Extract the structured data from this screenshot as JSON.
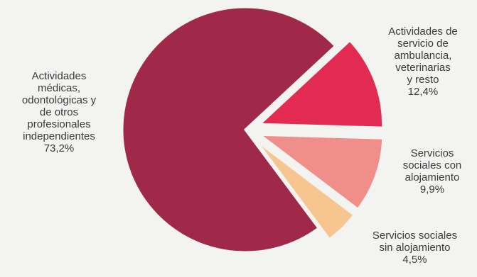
{
  "chart_data": {
    "type": "pie",
    "slices": [
      {
        "label_lines": [
          "Actividades",
          "médicas,",
          "odontológicas y",
          "de otros",
          "profesionales",
          "independientes"
        ],
        "value_label": "73,2%",
        "value": 73.2,
        "color": "#a02848",
        "exploded": false
      },
      {
        "label_lines": [
          "Actividades de",
          "servicio de",
          "ambulancia,",
          "veterinarias",
          "y resto"
        ],
        "value_label": "12,4%",
        "value": 12.4,
        "color": "#e32b52",
        "exploded": true
      },
      {
        "label_lines": [
          "Servicios",
          "sociales con",
          "alojamiento"
        ],
        "value_label": "9,9%",
        "value": 9.9,
        "color": "#f08f89",
        "exploded": true
      },
      {
        "label_lines": [
          "Servicios sociales",
          "sin alojamiento"
        ],
        "value_label": "4,5%",
        "value": 4.5,
        "color": "#f7c590",
        "exploded": true
      }
    ]
  }
}
